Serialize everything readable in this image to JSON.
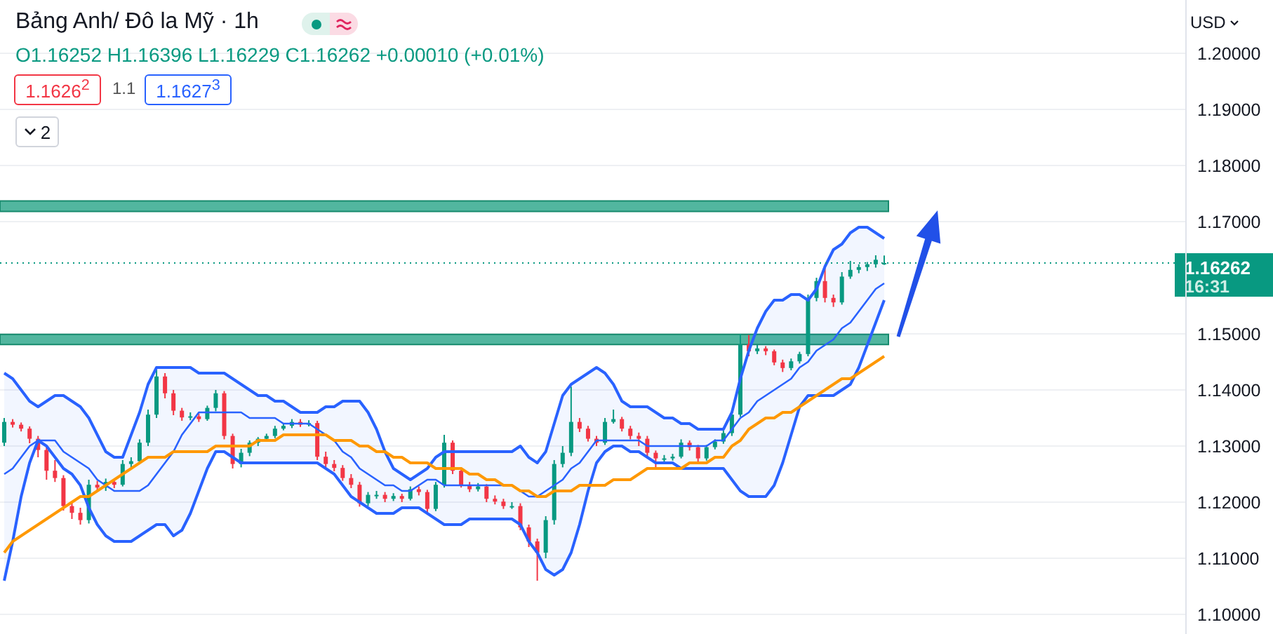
{
  "chart_data": {
    "type": "candlestick",
    "title": "Bảng Anh/ Đô la Mỹ · 1h",
    "subtitle": "O1.16252 H1.16396 L1.16229 C1.16262 +0.00010 (+0.01%)",
    "annotations": [
      "1.1626$^{2}$",
      "1.1",
      "1.1627$^{3}$",
      "2",
      "USD",
      "16:31"
    ],
    "categories": [
      null,
      null,
      null,
      null,
      null,
      null,
      null,
      null,
      null,
      null,
      null,
      null,
      null,
      null,
      null,
      null,
      null,
      null,
      null,
      null,
      null,
      null,
      null,
      null,
      null,
      null,
      null,
      null,
      null,
      null,
      null,
      null,
      null,
      null,
      null,
      null,
      null,
      null,
      null,
      null,
      null,
      null,
      null,
      null,
      null,
      null,
      null,
      null,
      null,
      null,
      null,
      null,
      null,
      null,
      null,
      null,
      null,
      null,
      null,
      null,
      null,
      null,
      null,
      null,
      null,
      null,
      null,
      null,
      null,
      null,
      null,
      null,
      null,
      null,
      null,
      null,
      null,
      null,
      null,
      null,
      null,
      null,
      null,
      null,
      null,
      null,
      null,
      null,
      null,
      null,
      null,
      null,
      null,
      null,
      null,
      null,
      null,
      null,
      null,
      null,
      null,
      null,
      null,
      null,
      null
    ],
    "ohlc": [
      [
        1.1306,
        1.135,
        1.13,
        1.1343
      ],
      [
        1.1343,
        1.1348,
        1.1333,
        1.1338
      ],
      [
        1.1338,
        1.1342,
        1.1326,
        1.1331
      ],
      [
        1.1331,
        1.1335,
        1.1305,
        1.1313
      ],
      [
        1.1313,
        1.1318,
        1.128,
        1.1293
      ],
      [
        1.1293,
        1.1298,
        1.124,
        1.1256
      ],
      [
        1.1256,
        1.1275,
        1.1236,
        1.1243
      ],
      [
        1.1243,
        1.1248,
        1.1185,
        1.1193
      ],
      [
        1.1193,
        1.12,
        1.117,
        1.1181
      ],
      [
        1.1181,
        1.119,
        1.116,
        1.1168
      ],
      [
        1.1168,
        1.124,
        1.1162,
        1.1231
      ],
      [
        1.1231,
        1.1238,
        1.122,
        1.1226
      ],
      [
        1.1226,
        1.1242,
        1.122,
        1.1236
      ],
      [
        1.1236,
        1.1241,
        1.1225,
        1.1231
      ],
      [
        1.1231,
        1.1275,
        1.1228,
        1.1268
      ],
      [
        1.1268,
        1.128,
        1.1262,
        1.1273
      ],
      [
        1.1273,
        1.1312,
        1.127,
        1.1306
      ],
      [
        1.1306,
        1.1365,
        1.13,
        1.1356
      ],
      [
        1.1356,
        1.1436,
        1.135,
        1.1424
      ],
      [
        1.1424,
        1.143,
        1.1385,
        1.1394
      ],
      [
        1.1394,
        1.14,
        1.1355,
        1.1363
      ],
      [
        1.1363,
        1.1368,
        1.1345,
        1.1351
      ],
      [
        1.1351,
        1.136,
        1.1346,
        1.1353
      ],
      [
        1.1353,
        1.1358,
        1.1343,
        1.1348
      ],
      [
        1.1348,
        1.1372,
        1.1345,
        1.1368
      ],
      [
        1.1368,
        1.14,
        1.1362,
        1.1394
      ],
      [
        1.1394,
        1.1398,
        1.1312,
        1.1318
      ],
      [
        1.1318,
        1.1322,
        1.126,
        1.1268
      ],
      [
        1.1268,
        1.1295,
        1.1262,
        1.1288
      ],
      [
        1.1288,
        1.131,
        1.1282,
        1.1306
      ],
      [
        1.1306,
        1.1316,
        1.13,
        1.1313
      ],
      [
        1.1313,
        1.1322,
        1.131,
        1.1318
      ],
      [
        1.1318,
        1.1336,
        1.1314,
        1.1331
      ],
      [
        1.1331,
        1.134,
        1.1328,
        1.1336
      ],
      [
        1.1336,
        1.1348,
        1.1332,
        1.1343
      ],
      [
        1.1343,
        1.1348,
        1.1334,
        1.1338
      ],
      [
        1.1338,
        1.1346,
        1.1335,
        1.1341
      ],
      [
        1.1341,
        1.1345,
        1.1275,
        1.1281
      ],
      [
        1.1281,
        1.129,
        1.1262,
        1.1268
      ],
      [
        1.1268,
        1.1275,
        1.1255,
        1.1261
      ],
      [
        1.1261,
        1.1266,
        1.1238,
        1.1243
      ],
      [
        1.1243,
        1.125,
        1.1225,
        1.1231
      ],
      [
        1.1231,
        1.1236,
        1.1192,
        1.1198
      ],
      [
        1.1198,
        1.1218,
        1.1193,
        1.1213
      ],
      [
        1.1213,
        1.122,
        1.1206,
        1.1213
      ],
      [
        1.1213,
        1.1218,
        1.12,
        1.1206
      ],
      [
        1.1206,
        1.1216,
        1.1202,
        1.1211
      ],
      [
        1.1211,
        1.1215,
        1.12,
        1.1206
      ],
      [
        1.1206,
        1.1228,
        1.1203,
        1.1223
      ],
      [
        1.1223,
        1.1228,
        1.1212,
        1.1218
      ],
      [
        1.1218,
        1.1222,
        1.118,
        1.1188
      ],
      [
        1.1188,
        1.1236,
        1.1184,
        1.1231
      ],
      [
        1.1231,
        1.132,
        1.1226,
        1.1306
      ],
      [
        1.1306,
        1.131,
        1.125,
        1.1256
      ],
      [
        1.1256,
        1.1262,
        1.1226,
        1.1231
      ],
      [
        1.1231,
        1.1236,
        1.1218,
        1.1223
      ],
      [
        1.1223,
        1.1234,
        1.1219,
        1.1228
      ],
      [
        1.1228,
        1.1232,
        1.12,
        1.1206
      ],
      [
        1.1206,
        1.1212,
        1.1196,
        1.1201
      ],
      [
        1.1201,
        1.1206,
        1.1188,
        1.1193
      ],
      [
        1.1193,
        1.12,
        1.1188,
        1.1193
      ],
      [
        1.1193,
        1.1198,
        1.115,
        1.1155
      ],
      [
        1.1155,
        1.116,
        1.112,
        1.113
      ],
      [
        1.113,
        1.1135,
        1.106,
        1.111
      ],
      [
        1.111,
        1.1175,
        1.11,
        1.1168
      ],
      [
        1.1168,
        1.1275,
        1.116,
        1.1268
      ],
      [
        1.1268,
        1.13,
        1.1262,
        1.1288
      ],
      [
        1.1288,
        1.1406,
        1.1282,
        1.1343
      ],
      [
        1.1343,
        1.135,
        1.1325,
        1.1331
      ],
      [
        1.1331,
        1.1336,
        1.1308,
        1.1313
      ],
      [
        1.1313,
        1.1318,
        1.13,
        1.1306
      ],
      [
        1.1306,
        1.135,
        1.1302,
        1.1343
      ],
      [
        1.1343,
        1.1365,
        1.134,
        1.1348
      ],
      [
        1.1348,
        1.1352,
        1.1326,
        1.1331
      ],
      [
        1.1331,
        1.1336,
        1.1312,
        1.1318
      ],
      [
        1.1318,
        1.1324,
        1.13,
        1.1313
      ],
      [
        1.1313,
        1.1318,
        1.128,
        1.1288
      ],
      [
        1.1288,
        1.1292,
        1.126,
        1.1278
      ],
      [
        1.1278,
        1.1284,
        1.1272,
        1.1278
      ],
      [
        1.1278,
        1.1286,
        1.1274,
        1.1281
      ],
      [
        1.1281,
        1.1312,
        1.1278,
        1.1306
      ],
      [
        1.1306,
        1.131,
        1.1292,
        1.1298
      ],
      [
        1.1298,
        1.1302,
        1.1272,
        1.1278
      ],
      [
        1.1278,
        1.1302,
        1.1274,
        1.1298
      ],
      [
        1.1298,
        1.1312,
        1.1294,
        1.1308
      ],
      [
        1.1308,
        1.1328,
        1.1304,
        1.1323
      ],
      [
        1.1323,
        1.1362,
        1.1318,
        1.1356
      ],
      [
        1.1356,
        1.15,
        1.1352,
        1.1481
      ],
      [
        1.1481,
        1.1498,
        1.146,
        1.1469
      ],
      [
        1.1469,
        1.148,
        1.1464,
        1.1474
      ],
      [
        1.1474,
        1.1478,
        1.1462,
        1.1469
      ],
      [
        1.1469,
        1.1472,
        1.1444,
        1.1449
      ],
      [
        1.1449,
        1.1454,
        1.1432,
        1.1439
      ],
      [
        1.1439,
        1.1456,
        1.1435,
        1.1451
      ],
      [
        1.1451,
        1.1468,
        1.1447,
        1.1464
      ],
      [
        1.1464,
        1.157,
        1.146,
        1.1564
      ],
      [
        1.1564,
        1.16,
        1.1558,
        1.1594
      ],
      [
        1.1594,
        1.1619,
        1.1556,
        1.1564
      ],
      [
        1.1564,
        1.157,
        1.1548,
        1.1556
      ],
      [
        1.1556,
        1.161,
        1.1552,
        1.1602
      ],
      [
        1.1602,
        1.163,
        1.1598,
        1.1614
      ],
      [
        1.1614,
        1.1624,
        1.1608,
        1.1619
      ],
      [
        1.1619,
        1.1628,
        1.1612,
        1.1624
      ],
      [
        1.1624,
        1.164,
        1.1618,
        1.1632
      ],
      [
        1.16252,
        1.16396,
        1.16229,
        1.16262
      ]
    ],
    "series": [
      {
        "type": "line",
        "color": "#2962ff",
        "values": [
          1.125,
          1.126,
          1.128,
          1.13,
          1.131,
          1.131,
          1.131,
          1.129,
          1.128,
          1.127,
          1.126,
          1.124,
          1.123,
          1.122,
          1.122,
          1.122,
          1.122,
          1.123,
          1.125,
          1.127,
          1.129,
          1.132,
          1.134,
          1.136,
          1.136,
          1.136,
          1.136,
          1.136,
          1.136,
          1.135,
          1.135,
          1.135,
          1.135,
          1.134,
          1.134,
          1.134,
          1.134,
          1.133,
          1.132,
          1.131,
          1.129,
          1.128,
          1.126,
          1.125,
          1.124,
          1.123,
          1.123,
          1.122,
          1.122,
          1.123,
          1.124,
          1.124,
          1.123,
          1.123,
          1.123,
          1.123,
          1.123,
          1.123,
          1.123,
          1.123,
          1.123,
          1.122,
          1.121,
          1.121,
          1.122,
          1.123,
          1.124,
          1.126,
          1.127,
          1.129,
          1.131,
          1.131,
          1.131,
          1.131,
          1.131,
          1.131,
          1.13,
          1.13,
          1.13,
          1.13,
          1.13,
          1.13,
          1.13,
          1.13,
          1.131,
          1.131,
          1.133,
          1.135,
          1.136,
          1.138,
          1.139,
          1.14,
          1.141,
          1.142,
          1.144,
          1.145,
          1.147,
          1.148,
          1.149,
          1.151,
          1.152,
          1.154,
          1.156,
          1.158,
          1.159
        ],
        "upper": [
          1.143,
          1.142,
          1.14,
          1.138,
          1.137,
          1.138,
          1.139,
          1.139,
          1.138,
          1.137,
          1.135,
          1.132,
          1.129,
          1.128,
          1.128,
          1.132,
          1.136,
          1.141,
          1.144,
          1.144,
          1.144,
          1.144,
          1.144,
          1.143,
          1.143,
          1.143,
          1.143,
          1.142,
          1.141,
          1.14,
          1.139,
          1.139,
          1.138,
          1.138,
          1.137,
          1.136,
          1.136,
          1.136,
          1.137,
          1.137,
          1.138,
          1.138,
          1.138,
          1.136,
          1.133,
          1.129,
          1.126,
          1.125,
          1.124,
          1.125,
          1.126,
          1.128,
          1.129,
          1.129,
          1.129,
          1.129,
          1.129,
          1.129,
          1.129,
          1.129,
          1.129,
          1.13,
          1.128,
          1.127,
          1.129,
          1.134,
          1.139,
          1.141,
          1.142,
          1.143,
          1.144,
          1.143,
          1.141,
          1.138,
          1.137,
          1.137,
          1.137,
          1.136,
          1.135,
          1.135,
          1.134,
          1.134,
          1.133,
          1.133,
          1.133,
          1.133,
          1.136,
          1.142,
          1.147,
          1.151,
          1.154,
          1.156,
          1.156,
          1.157,
          1.157,
          1.156,
          1.158,
          1.162,
          1.165,
          1.166,
          1.168,
          1.169,
          1.169,
          1.168,
          1.167
        ],
        "lower": [
          1.106,
          1.113,
          1.121,
          1.127,
          1.131,
          1.13,
          1.128,
          1.126,
          1.125,
          1.123,
          1.119,
          1.116,
          1.114,
          1.113,
          1.113,
          1.113,
          1.114,
          1.115,
          1.116,
          1.116,
          1.114,
          1.115,
          1.118,
          1.122,
          1.126,
          1.129,
          1.129,
          1.128,
          1.127,
          1.127,
          1.127,
          1.127,
          1.127,
          1.127,
          1.127,
          1.127,
          1.127,
          1.127,
          1.126,
          1.125,
          1.123,
          1.121,
          1.12,
          1.119,
          1.118,
          1.118,
          1.118,
          1.119,
          1.119,
          1.119,
          1.118,
          1.117,
          1.116,
          1.116,
          1.116,
          1.117,
          1.117,
          1.117,
          1.117,
          1.117,
          1.117,
          1.116,
          1.113,
          1.111,
          1.108,
          1.107,
          1.108,
          1.111,
          1.116,
          1.122,
          1.127,
          1.129,
          1.13,
          1.13,
          1.129,
          1.129,
          1.128,
          1.127,
          1.127,
          1.127,
          1.126,
          1.126,
          1.126,
          1.126,
          1.126,
          1.126,
          1.124,
          1.122,
          1.121,
          1.121,
          1.121,
          1.123,
          1.127,
          1.132,
          1.137,
          1.139,
          1.139,
          1.139,
          1.139,
          1.14,
          1.141,
          1.144,
          1.148,
          1.152,
          1.156
        ]
      },
      {
        "type": "line",
        "color": "#2962ff",
        "values": [
          1.143,
          1.142,
          1.14,
          1.138,
          1.137,
          1.138,
          1.139,
          1.139,
          1.138,
          1.137,
          1.135,
          1.132,
          1.129,
          1.128,
          1.128,
          1.132,
          1.136,
          1.141,
          1.144,
          1.144,
          1.144,
          1.144,
          1.144,
          1.143,
          1.143,
          1.143,
          1.143,
          1.142,
          1.141,
          1.14,
          1.139,
          1.139,
          1.138,
          1.138,
          1.137,
          1.136,
          1.136,
          1.136,
          1.137,
          1.137,
          1.138,
          1.138,
          1.138,
          1.136,
          1.133,
          1.129,
          1.126,
          1.125,
          1.124,
          1.125,
          1.126,
          1.128,
          1.129,
          1.129,
          1.129,
          1.129,
          1.129,
          1.129,
          1.129,
          1.129,
          1.129,
          1.13,
          1.128,
          1.127,
          1.129,
          1.134,
          1.139,
          1.141,
          1.142,
          1.143,
          1.144,
          1.143,
          1.141,
          1.138,
          1.137,
          1.137,
          1.137,
          1.136,
          1.135,
          1.135,
          1.134,
          1.134,
          1.133,
          1.133,
          1.133,
          1.133,
          1.136,
          1.142,
          1.147,
          1.151,
          1.154,
          1.156,
          1.156,
          1.157,
          1.157,
          1.156,
          1.158,
          1.162,
          1.165,
          1.166,
          1.168,
          1.169,
          1.169,
          1.168,
          1.167
        ]
      },
      {
        "type": "line",
        "color": "#2962ff",
        "values": [
          1.106,
          1.113,
          1.121,
          1.127,
          1.131,
          1.13,
          1.128,
          1.126,
          1.125,
          1.123,
          1.119,
          1.116,
          1.114,
          1.113,
          1.113,
          1.113,
          1.114,
          1.115,
          1.116,
          1.116,
          1.114,
          1.115,
          1.118,
          1.122,
          1.126,
          1.129,
          1.129,
          1.128,
          1.127,
          1.127,
          1.127,
          1.127,
          1.127,
          1.127,
          1.127,
          1.127,
          1.127,
          1.127,
          1.126,
          1.125,
          1.123,
          1.121,
          1.12,
          1.119,
          1.118,
          1.118,
          1.118,
          1.119,
          1.119,
          1.119,
          1.118,
          1.117,
          1.116,
          1.116,
          1.116,
          1.117,
          1.117,
          1.117,
          1.117,
          1.117,
          1.117,
          1.116,
          1.113,
          1.111,
          1.108,
          1.107,
          1.108,
          1.111,
          1.116,
          1.122,
          1.127,
          1.129,
          1.13,
          1.13,
          1.129,
          1.129,
          1.128,
          1.127,
          1.127,
          1.127,
          1.126,
          1.126,
          1.126,
          1.126,
          1.126,
          1.126,
          1.124,
          1.122,
          1.121,
          1.121,
          1.121,
          1.123,
          1.127,
          1.132,
          1.137,
          1.139,
          1.139,
          1.139,
          1.139,
          1.14,
          1.141,
          1.144,
          1.148,
          1.152,
          1.156
        ]
      },
      {
        "type": "line",
        "color": "#ff9800",
        "values": [
          1.111,
          1.113,
          1.114,
          1.115,
          1.116,
          1.117,
          1.118,
          1.119,
          1.12,
          1.121,
          1.121,
          1.122,
          1.123,
          1.124,
          1.125,
          1.126,
          1.127,
          1.128,
          1.128,
          1.128,
          1.129,
          1.129,
          1.129,
          1.129,
          1.129,
          1.13,
          1.13,
          1.13,
          1.13,
          1.13,
          1.131,
          1.131,
          1.131,
          1.132,
          1.132,
          1.132,
          1.132,
          1.132,
          1.132,
          1.131,
          1.131,
          1.131,
          1.13,
          1.13,
          1.129,
          1.129,
          1.128,
          1.128,
          1.127,
          1.127,
          1.127,
          1.126,
          1.126,
          1.126,
          1.126,
          1.125,
          1.125,
          1.124,
          1.124,
          1.123,
          1.123,
          1.122,
          1.122,
          1.121,
          1.121,
          1.122,
          1.122,
          1.122,
          1.123,
          1.123,
          1.123,
          1.123,
          1.124,
          1.124,
          1.124,
          1.125,
          1.126,
          1.126,
          1.126,
          1.126,
          1.126,
          1.127,
          1.127,
          1.127,
          1.128,
          1.128,
          1.13,
          1.131,
          1.133,
          1.134,
          1.135,
          1.135,
          1.136,
          1.136,
          1.137,
          1.138,
          1.139,
          1.14,
          1.141,
          1.142,
          1.142,
          1.143,
          1.144,
          1.145,
          1.146
        ]
      }
    ],
    "ylim": [
      1.0965,
      1.2095
    ],
    "yticks": [
      {
        "value": 1.1,
        "label": "1.10000"
      },
      {
        "value": 1.11,
        "label": "1.11000"
      },
      {
        "value": 1.12,
        "label": "1.12000"
      },
      {
        "value": 1.13,
        "label": "1.13000"
      },
      {
        "value": 1.14,
        "label": "1.14000"
      },
      {
        "value": 1.15,
        "label": "1.15000"
      },
      {
        "value": 1.17,
        "label": "1.17000"
      },
      {
        "value": 1.18,
        "label": "1.18000"
      },
      {
        "value": 1.19,
        "label": "1.19000"
      },
      {
        "value": 1.2,
        "label": "1.20000"
      }
    ],
    "bands": [
      {
        "axis": "y",
        "from": 1.1718,
        "to": 1.1737,
        "color": "#52b69f"
      },
      {
        "axis": "y",
        "from": 1.1481,
        "to": 1.1499,
        "color": "#52b69f"
      }
    ],
    "ref_lines": [
      {
        "axis": "y",
        "value": 1.16262,
        "label": "1.16262",
        "color": "#089981",
        "line_style": "dotted"
      }
    ],
    "grid": "y",
    "tick_labels": "y"
  }
}
